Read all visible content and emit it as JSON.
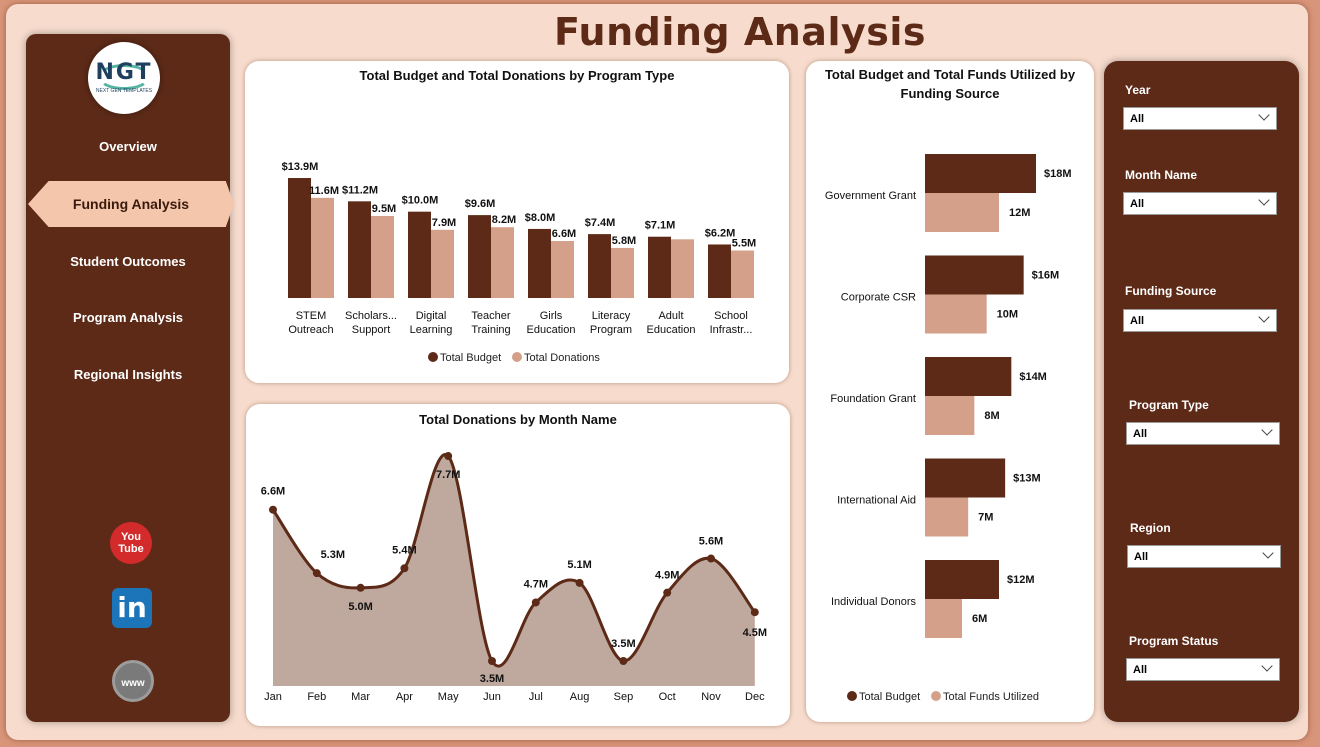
{
  "page": {
    "title": "Funding Analysis"
  },
  "logo": {
    "main": "NGT",
    "sub": "NEXT GEN TEMPLATES"
  },
  "nav": {
    "items": [
      {
        "label": "Overview"
      },
      {
        "label": "Funding Analysis",
        "active": true
      },
      {
        "label": "Student Outcomes"
      },
      {
        "label": "Program Analysis"
      },
      {
        "label": "Regional Insights"
      }
    ]
  },
  "social": {
    "youtube": "You Tube",
    "linkedin": "in",
    "web": "www"
  },
  "colors": {
    "budget": "#5c2a17",
    "donations": "#d4a08a",
    "area": "#bfa99f",
    "accent": "#f4c7ad"
  },
  "filters": [
    {
      "label": "Year",
      "value": "All"
    },
    {
      "label": "Month Name",
      "value": "All"
    },
    {
      "label": "Funding Source",
      "value": "All"
    },
    {
      "label": "Program Type",
      "value": "All"
    },
    {
      "label": "Region",
      "value": "All"
    },
    {
      "label": "Program Status",
      "value": "All"
    }
  ],
  "chart_data": [
    {
      "type": "bar",
      "title": "Total Budget and Total Donations by Program Type",
      "categories": [
        [
          "STEM",
          "Outreach"
        ],
        [
          "Scholars...",
          "Support"
        ],
        [
          "Digital",
          "Learning"
        ],
        [
          "Teacher",
          "Training"
        ],
        [
          "Girls",
          "Education"
        ],
        [
          "Literacy",
          "Program"
        ],
        [
          "Adult",
          "Education"
        ],
        [
          "School",
          "Infrastr..."
        ]
      ],
      "series": [
        {
          "name": "Total Budget",
          "values": [
            13.9,
            11.2,
            10.0,
            9.6,
            8.0,
            7.4,
            7.1,
            6.2
          ],
          "labels": [
            "$13.9M",
            "$11.2M",
            "$10.0M",
            "$9.6M",
            "$8.0M",
            "$7.4M",
            "$7.1M",
            "$6.2M"
          ]
        },
        {
          "name": "Total Donations",
          "values": [
            11.6,
            9.5,
            7.9,
            8.2,
            6.6,
            5.8,
            6.8,
            5.5
          ],
          "labels": [
            "11.6M",
            "9.5M",
            "7.9M",
            "8.2M",
            "6.6M",
            "5.8M",
            "",
            "5.5M"
          ]
        }
      ],
      "legend": "bottom"
    },
    {
      "type": "area",
      "title": "Total Donations by Month Name",
      "categories": [
        "Jan",
        "Feb",
        "Mar",
        "Apr",
        "May",
        "Jun",
        "Jul",
        "Aug",
        "Sep",
        "Oct",
        "Nov",
        "Dec"
      ],
      "series": [
        {
          "name": "Total Donations",
          "values": [
            6.6,
            5.3,
            5.0,
            5.4,
            7.7,
            3.5,
            4.7,
            5.1,
            3.5,
            4.9,
            5.6,
            4.5
          ],
          "labels": [
            "6.6M",
            "5.3M",
            "5.0M",
            "5.4M",
            "7.7M",
            "3.5M",
            "4.7M",
            "5.1M",
            "3.5M",
            "4.9M",
            "5.6M",
            "4.5M"
          ]
        }
      ]
    },
    {
      "type": "bar",
      "orientation": "horizontal",
      "title": "Total Budget and Total Funds Utilized by Funding Source",
      "categories": [
        "Government Grant",
        "Corporate CSR",
        "Foundation Grant",
        "International Aid",
        "Individual Donors"
      ],
      "series": [
        {
          "name": "Total Budget",
          "values": [
            18,
            16,
            14,
            13,
            12
          ],
          "labels": [
            "$18M",
            "$16M",
            "$14M",
            "$13M",
            "$12M"
          ]
        },
        {
          "name": "Total Funds Utilized",
          "values": [
            12,
            10,
            8,
            7,
            6
          ],
          "labels": [
            "12M",
            "10M",
            "8M",
            "7M",
            "6M"
          ]
        }
      ],
      "legend": "bottom"
    }
  ]
}
